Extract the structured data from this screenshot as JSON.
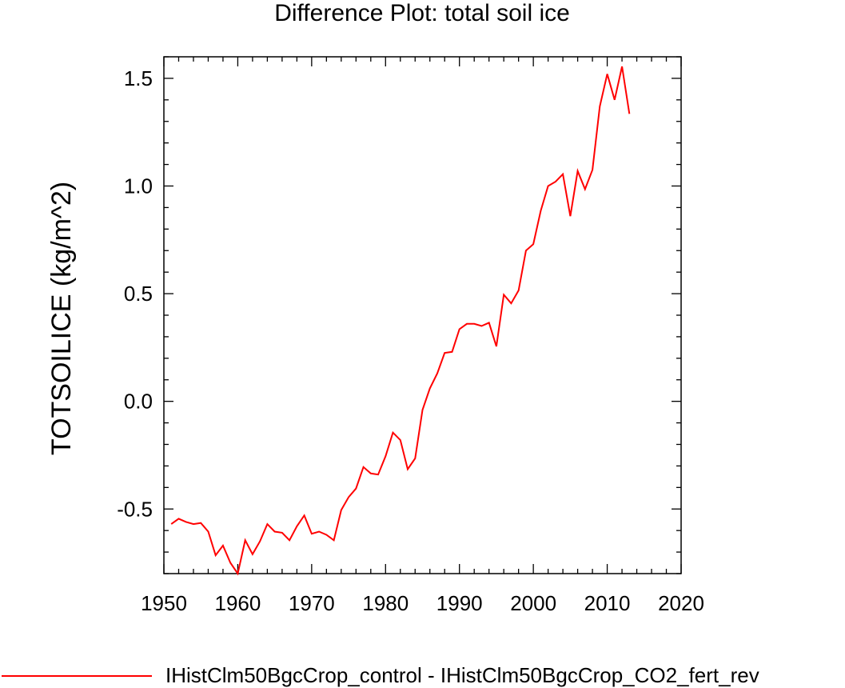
{
  "chart_data": {
    "type": "line",
    "title": "Difference Plot: total soil ice",
    "xlabel": "",
    "ylabel": "TOTSOILICE  (kg/m^2)",
    "xlim": [
      1950,
      2020
    ],
    "ylim": [
      -0.8,
      1.6
    ],
    "x_ticks": [
      1950,
      1960,
      1970,
      1980,
      1990,
      2000,
      2010,
      2020
    ],
    "x_tick_labels": [
      "1950",
      "1960",
      "1970",
      "1980",
      "1990",
      "2000",
      "2010",
      "2020"
    ],
    "y_ticks": [
      -0.5,
      0.0,
      0.5,
      1.0,
      1.5
    ],
    "y_tick_labels": [
      "-0.5",
      "0.0",
      "0.5",
      "1.0",
      "1.5"
    ],
    "grid": false,
    "legend_position": "bottom",
    "series": [
      {
        "name": "IHistClm50BgcCrop_control - IHistClm50BgcCrop_CO2_fert_rev",
        "color": "#ff0000",
        "x": [
          1951,
          1952,
          1953,
          1954,
          1955,
          1956,
          1957,
          1958,
          1959,
          1960,
          1961,
          1962,
          1963,
          1964,
          1965,
          1966,
          1967,
          1968,
          1969,
          1970,
          1971,
          1972,
          1973,
          1974,
          1975,
          1976,
          1977,
          1978,
          1979,
          1980,
          1981,
          1982,
          1983,
          1984,
          1985,
          1986,
          1987,
          1988,
          1989,
          1990,
          1991,
          1992,
          1993,
          1994,
          1995,
          1996,
          1997,
          1998,
          1999,
          2000,
          2001,
          2002,
          2003,
          2004,
          2005,
          2006,
          2007,
          2008,
          2009,
          2010,
          2011,
          2012,
          2013
        ],
        "y": [
          -0.57,
          -0.545,
          -0.56,
          -0.57,
          -0.565,
          -0.605,
          -0.715,
          -0.67,
          -0.75,
          -0.8,
          -0.645,
          -0.71,
          -0.65,
          -0.57,
          -0.605,
          -0.61,
          -0.645,
          -0.58,
          -0.53,
          -0.615,
          -0.605,
          -0.62,
          -0.645,
          -0.505,
          -0.445,
          -0.405,
          -0.305,
          -0.335,
          -0.34,
          -0.255,
          -0.145,
          -0.18,
          -0.315,
          -0.265,
          -0.04,
          0.06,
          0.13,
          0.225,
          0.23,
          0.335,
          0.36,
          0.36,
          0.35,
          0.365,
          0.255,
          0.495,
          0.455,
          0.515,
          0.7,
          0.73,
          0.885,
          1.0,
          1.02,
          1.055,
          0.86,
          1.07,
          0.985,
          1.075,
          1.37,
          1.52,
          1.4,
          1.555,
          1.335
        ]
      }
    ]
  }
}
